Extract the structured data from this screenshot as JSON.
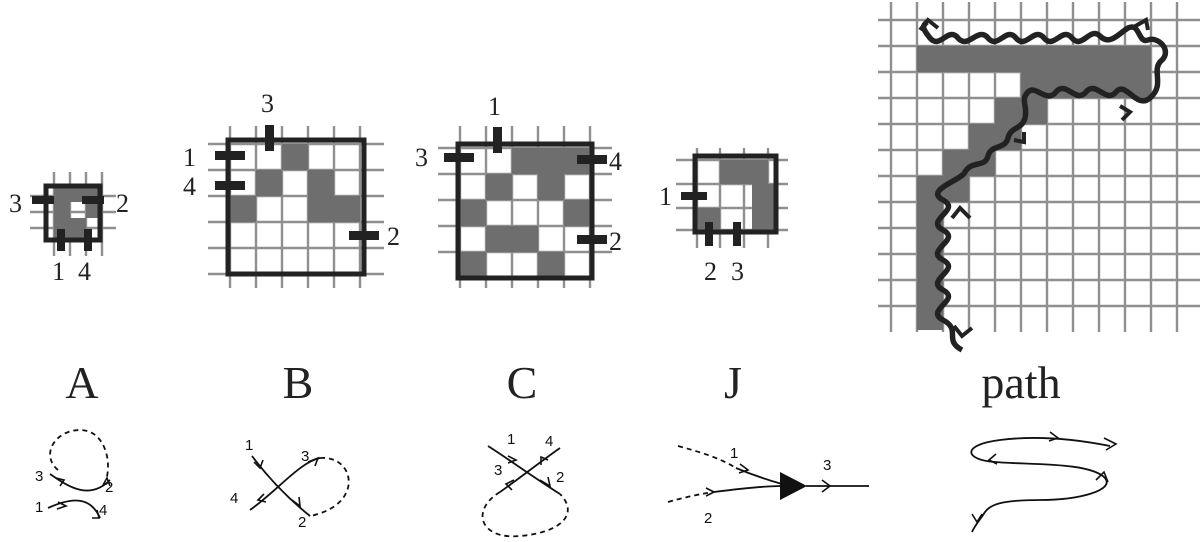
{
  "panels": [
    {
      "id": "A",
      "caption": "A",
      "terminals": [
        "1",
        "2",
        "3",
        "4"
      ],
      "strand_labels": [
        "1",
        "2",
        "3",
        "4"
      ]
    },
    {
      "id": "B",
      "caption": "B",
      "terminals": [
        "1",
        "2",
        "3",
        "4"
      ],
      "strand_labels": [
        "1",
        "2",
        "3",
        "4"
      ]
    },
    {
      "id": "C",
      "caption": "C",
      "terminals": [
        "1",
        "2",
        "3",
        "4"
      ],
      "strand_labels": [
        "1",
        "2",
        "3",
        "4"
      ]
    },
    {
      "id": "J",
      "caption": "J",
      "terminals": [
        "1",
        "2",
        "3"
      ],
      "strand_labels": [
        "1",
        "2",
        "3"
      ]
    },
    {
      "id": "path",
      "caption": "path"
    }
  ],
  "colors": {
    "grid": "#8f8f8f",
    "filled_cell": "#6e6e6e",
    "border": "#222222",
    "background": "#ffffff"
  }
}
